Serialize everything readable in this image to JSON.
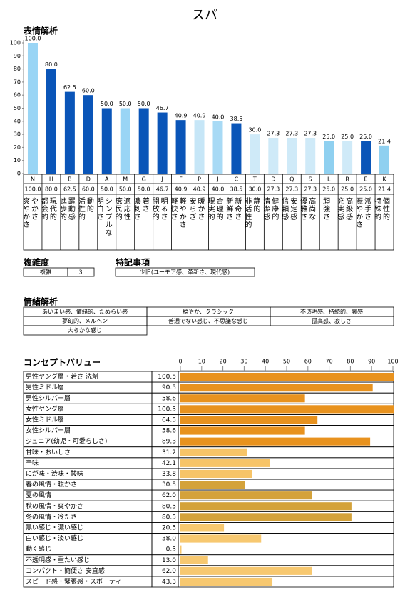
{
  "title": "スパ",
  "expression": {
    "heading": "表情解析",
    "chart_data": {
      "type": "bar",
      "codes": [
        "N",
        "H",
        "B",
        "D",
        "A",
        "M",
        "G",
        "J",
        "F",
        "P",
        "J",
        "C",
        "T",
        "D",
        "Q",
        "S",
        "L",
        "R",
        "E",
        "K"
      ],
      "categories": [
        [
          "爽やかさ",
          "やかさ"
        ],
        [
          "都会的",
          "現代的"
        ],
        [
          "進歩的",
          "躍動感"
        ],
        [
          "活性的",
          "動的"
        ],
        [
          "明白さ",
          "シンプルな"
        ],
        [
          "庶民的",
          "適応性"
        ],
        [
          "濃刺さ",
          "若さ"
        ],
        [
          "開放的",
          "明るさ"
        ],
        [
          "軽快さ",
          "軽やかさ"
        ],
        [
          "安らぎ",
          "暖かさ"
        ],
        [
          "現実的",
          "合理的"
        ],
        [
          "新鮮さ",
          "新奇さ"
        ],
        [
          "非活性的",
          "静的"
        ],
        [
          "清潔感",
          "健康的"
        ],
        [
          "信頼感",
          "安定感"
        ],
        [
          "優雅さ",
          "高尚な"
        ],
        [
          "頑強さ"
        ],
        [
          "充実感",
          "高級感"
        ],
        [
          "賑やかさ",
          "派手さ"
        ],
        [
          "特殊的",
          "個性的"
        ]
      ],
      "values": [
        100,
        80,
        62.5,
        60,
        50,
        50,
        50,
        46.7,
        40.9,
        40.9,
        40,
        38.5,
        30,
        27.3,
        27.3,
        27.3,
        25,
        25,
        25,
        21.4
      ],
      "value_labels": [
        "100.0",
        "80.0",
        "62.5",
        "60.0",
        "50.0",
        "50.0",
        "50.0",
        "46.7",
        "40.9",
        "40.9",
        "40.0",
        "38.5",
        "30.0",
        "27.3",
        "27.3",
        "27.3",
        "25.0",
        "25.0",
        "25.0",
        "21.4"
      ],
      "colors": [
        "#99d5f5",
        "#0a55b8",
        "#0a55b8",
        "#0a55b8",
        "#0a55b8",
        "#99d5f5",
        "#0a55b8",
        "#0a55b8",
        "#0a55b8",
        "#c6e6f7",
        "#a8daf5",
        "#0a55b8",
        "#cfeaf8",
        "#cfeaf8",
        "#cfeaf8",
        "#cfeaf8",
        "#8fd0f0",
        "#cfeaf8",
        "#0a55b8",
        "#8fd0f0"
      ],
      "ylim": [
        0,
        100
      ],
      "yticks": [
        0,
        10,
        20,
        30,
        40,
        50,
        60,
        70,
        80,
        90,
        100
      ]
    }
  },
  "complexity": {
    "heading": "複雑度",
    "label": "複雑",
    "value": "3"
  },
  "notes": {
    "heading": "特記事項",
    "text": "少旧(ユーモア感、革新さ、現代感)"
  },
  "emotion": {
    "heading": "情緒解析",
    "rows": [
      [
        "あいまい感、情緒的、ためらい感",
        "穏やか、クラシック",
        "不透明感、持続的、哀感"
      ],
      [
        "夢幻的、メルヘン",
        "普通でない感じ、不思議な感じ",
        "孤高感、寂しさ"
      ],
      [
        "大らかな感じ"
      ]
    ]
  },
  "concept": {
    "heading": "コンセプトバリュー",
    "chart_data": {
      "type": "hbar",
      "categories": [
        "男性ヤング層・若さ 洗剤",
        "男性ミドル層",
        "男性シルバー層",
        "女性ヤング層",
        "女性ミドル層",
        "女性シルバー層",
        "ジュニア(幼児・可愛らしさ)",
        "甘味・おいしさ",
        "辛味",
        "にが味・渋味・酸味",
        "春の風情・暖かさ",
        "夏の風情",
        "秋の風情・爽やかさ",
        "冬の風情・冷たさ",
        "黒い感じ・濃い感じ",
        "白い感じ・淡い感じ",
        "動く感じ",
        "不透明感・重たい感じ",
        "コンパクト・簡便さ 安直感",
        "スピード感・緊張感・スポーティー"
      ],
      "values": [
        100.5,
        90.5,
        58.6,
        100.5,
        64.5,
        58.6,
        89.3,
        31.2,
        42.1,
        33.8,
        30.5,
        62,
        80.5,
        80.5,
        20.5,
        38,
        0.5,
        13,
        62,
        43.3
      ],
      "value_labels": [
        "100.5",
        "90.5",
        "58.6",
        "100.5",
        "64.5",
        "58.6",
        "89.3",
        "31.2",
        "42.1",
        "33.8",
        "30.5",
        "62.0",
        "80.5",
        "80.5",
        "20.5",
        "38.0",
        "0.5",
        "13.0",
        "62.0",
        "43.3"
      ],
      "colors": [
        "#e8921e",
        "#e8921e",
        "#e8921e",
        "#e8921e",
        "#e8921e",
        "#e8921e",
        "#e8921e",
        "#f7c468",
        "#f7c468",
        "#f7c468",
        "#d4a23a",
        "#d4a23a",
        "#d4a23a",
        "#d4a23a",
        "#f7c870",
        "#f7c870",
        "#f7c870",
        "#f7c870",
        "#f7c870",
        "#f7c870"
      ],
      "xlim": [
        0,
        100
      ],
      "xticks": [
        0,
        10,
        20,
        30,
        40,
        50,
        60,
        70,
        80,
        90,
        100
      ]
    }
  }
}
